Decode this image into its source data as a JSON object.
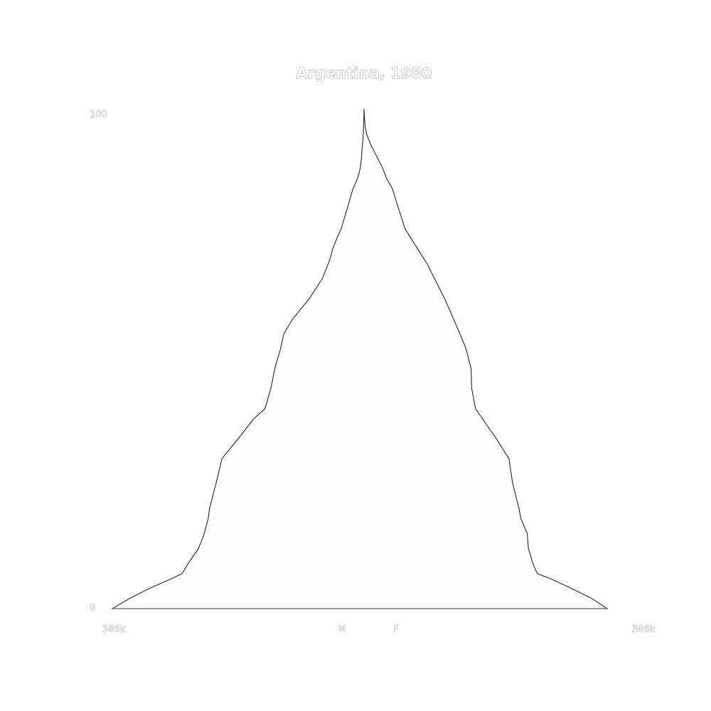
{
  "chart_data": {
    "type": "area",
    "title": "Argentina, 1980",
    "xlabel": "",
    "ylabel": "",
    "y_axis": {
      "min": 0,
      "max": 100,
      "tick_labels": [
        "0",
        "100"
      ]
    },
    "x_axis": {
      "max_population": 386000,
      "left_tick_label": "386k",
      "right_tick_label": "386k",
      "left_sex_label": "M",
      "right_sex_label": "F"
    },
    "grid": false,
    "legend": "none",
    "colors": {
      "fill": "#fdfdfd",
      "outline": "#111111",
      "baseline": "#333333"
    },
    "age": [
      0,
      2,
      4,
      6,
      7,
      9,
      12,
      15,
      18,
      20,
      25,
      30,
      34,
      38,
      40,
      44,
      48,
      52,
      55,
      58,
      62,
      66,
      69,
      70,
      72,
      74,
      76,
      80,
      84,
      86,
      88,
      90,
      92,
      93,
      94,
      95,
      96,
      97,
      98,
      99,
      100
    ],
    "series": [
      {
        "name": "M",
        "values": [
          386000,
          360000,
          330000,
          295000,
          279000,
          270000,
          254000,
          245000,
          239000,
          237000,
          227000,
          218000,
          193000,
          169000,
          152000,
          143000,
          137000,
          128000,
          123000,
          109000,
          84000,
          64000,
          55000,
          52000,
          48000,
          42000,
          35000,
          26000,
          17000,
          10000,
          6000,
          4000,
          3000,
          2200,
          1600,
          1200,
          800,
          500,
          250,
          100,
          0
        ]
      },
      {
        "name": "F",
        "values": [
          386000,
          362000,
          330000,
          296000,
          275000,
          268000,
          261000,
          259000,
          249000,
          246000,
          236000,
          230000,
          210000,
          188000,
          177000,
          171000,
          170000,
          162000,
          152000,
          142000,
          128000,
          112000,
          100000,
          95000,
          85000,
          75000,
          65000,
          55000,
          45000,
          36000,
          30000,
          22000,
          14000,
          10000,
          7000,
          4000,
          2500,
          1500,
          800,
          300,
          0
        ]
      }
    ]
  }
}
